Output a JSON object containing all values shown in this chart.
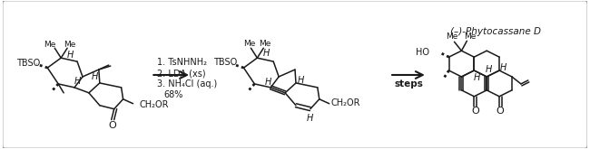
{
  "reagents_line1": "1. TsNHNH₂",
  "reagents_line2": "2. LDA (xs)",
  "reagents_line3": "3. NH₄Cl (aq.)",
  "reagents_line4": "68%",
  "steps_label": "steps",
  "product_name": "(–)-Phytocassane D",
  "text_color": "#1a1a1a",
  "border_color": "#999999",
  "line_color": "#1a1a1a",
  "figsize": [
    6.5,
    1.65
  ],
  "dpi": 100
}
